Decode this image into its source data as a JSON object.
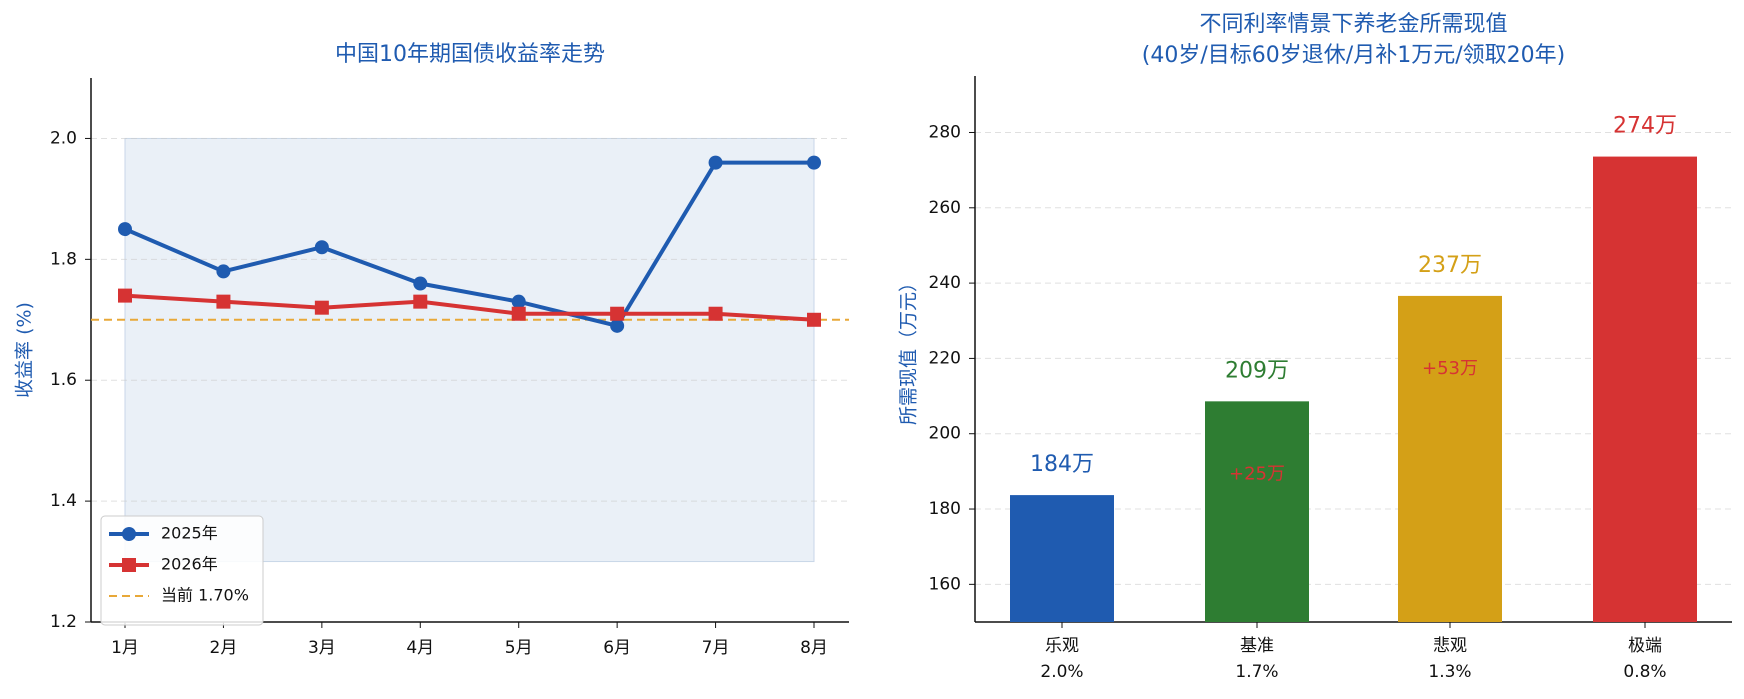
{
  "chart_data": [
    {
      "type": "line",
      "title": "中国10年期国债收益率走势",
      "y_label": "收益率 (%)",
      "categories": [
        "1月",
        "2月",
        "3月",
        "4月",
        "5月",
        "6月",
        "7月",
        "8月"
      ],
      "series": [
        {
          "name": "2025年",
          "color": "#1f5bb0",
          "marker": "circle",
          "values": [
            1.85,
            1.78,
            1.82,
            1.76,
            1.73,
            1.69,
            1.96,
            1.96
          ]
        },
        {
          "name": "2026年",
          "color": "#d63333",
          "marker": "square",
          "values": [
            1.74,
            1.73,
            1.72,
            1.73,
            1.71,
            1.71,
            1.71,
            1.7
          ]
        }
      ],
      "reference": {
        "value": 1.7,
        "label": "当前 1.70%",
        "color": "#e8a838"
      },
      "shade": [
        1.3,
        2.0
      ],
      "ylim": [
        1.2,
        2.1
      ],
      "yticks": [
        1.2,
        1.4,
        1.6,
        1.8,
        {
          "value": 2,
          "label": "2.0"
        }
      ],
      "grid": true,
      "legend": "lower left"
    },
    {
      "type": "bar",
      "title": [
        "不同利率情景下养老金所需现值",
        "(40岁/目标60岁退休/月补1万元/领取20年)"
      ],
      "y_label": "所需现值（万元）",
      "categories": [
        "乐观",
        "基准",
        "悲观",
        "极端"
      ],
      "subcategories": [
        "2.0%",
        "1.7%",
        "1.3%",
        "0.8%"
      ],
      "values": [
        183.7,
        208.6,
        236.6,
        273.6
      ],
      "value_labels": [
        "184万",
        "209万",
        "237万",
        "274万"
      ],
      "diff_labels": [
        null,
        "+25万",
        "+53万",
        null
      ],
      "colors": [
        "#1f5bb0",
        "#2e7d32",
        "#d4a017",
        "#d63333"
      ],
      "ylim": [
        150,
        295
      ],
      "yticks": [
        160,
        180,
        200,
        220,
        240,
        260,
        280
      ],
      "grid": true
    }
  ]
}
